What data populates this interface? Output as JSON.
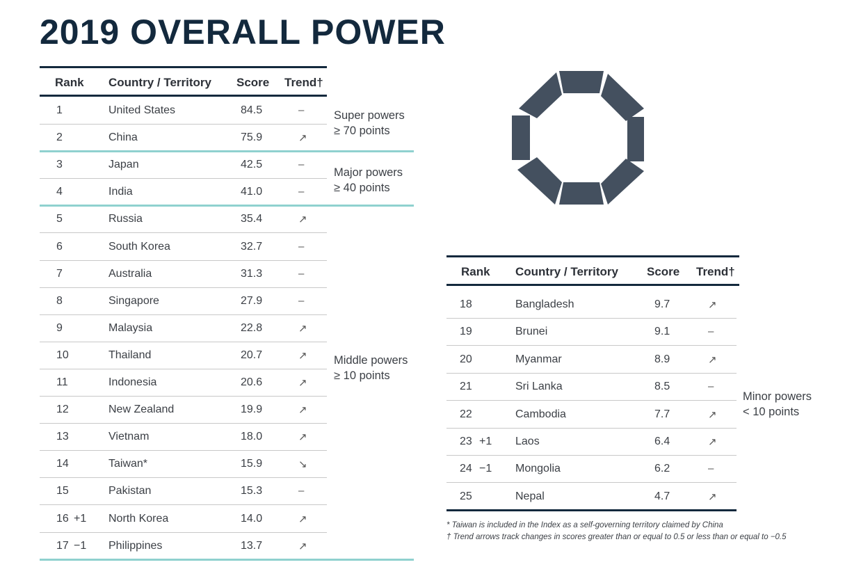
{
  "title": "2019 OVERALL POWER",
  "colors": {
    "navy": "#13293d",
    "teal": "#8fd1cf",
    "logo": "#44505f"
  },
  "headers": {
    "rank": "Rank",
    "country": "Country / Territory",
    "score": "Score",
    "trend": "Trend†"
  },
  "left_rows": [
    {
      "rank": "1",
      "change": "",
      "country": "United States",
      "score": "84.5",
      "trend": "–"
    },
    {
      "rank": "2",
      "change": "",
      "country": "China",
      "score": "75.9",
      "trend": "↗"
    },
    {
      "rank": "3",
      "change": "",
      "country": "Japan",
      "score": "42.5",
      "trend": "–"
    },
    {
      "rank": "4",
      "change": "",
      "country": "India",
      "score": "41.0",
      "trend": "–"
    },
    {
      "rank": "5",
      "change": "",
      "country": "Russia",
      "score": "35.4",
      "trend": "↗"
    },
    {
      "rank": "6",
      "change": "",
      "country": "South Korea",
      "score": "32.7",
      "trend": "–"
    },
    {
      "rank": "7",
      "change": "",
      "country": "Australia",
      "score": "31.3",
      "trend": "–"
    },
    {
      "rank": "8",
      "change": "",
      "country": "Singapore",
      "score": "27.9",
      "trend": "–"
    },
    {
      "rank": "9",
      "change": "",
      "country": "Malaysia",
      "score": "22.8",
      "trend": "↗"
    },
    {
      "rank": "10",
      "change": "",
      "country": "Thailand",
      "score": "20.7",
      "trend": "↗"
    },
    {
      "rank": "11",
      "change": "",
      "country": "Indonesia",
      "score": "20.6",
      "trend": "↗"
    },
    {
      "rank": "12",
      "change": "",
      "country": "New Zealand",
      "score": "19.9",
      "trend": "↗"
    },
    {
      "rank": "13",
      "change": "",
      "country": "Vietnam",
      "score": "18.0",
      "trend": "↗"
    },
    {
      "rank": "14",
      "change": "",
      "country": "Taiwan*",
      "score": "15.9",
      "trend": "↘"
    },
    {
      "rank": "15",
      "change": "",
      "country": "Pakistan",
      "score": "15.3",
      "trend": "–"
    },
    {
      "rank": "16",
      "change": "+1",
      "country": "North Korea",
      "score": "14.0",
      "trend": "↗"
    },
    {
      "rank": "17",
      "change": "−1",
      "country": "Philippines",
      "score": "13.7",
      "trend": "↗"
    }
  ],
  "right_rows": [
    {
      "rank": "18",
      "change": "",
      "country": "Bangladesh",
      "score": "9.7",
      "trend": "↗"
    },
    {
      "rank": "19",
      "change": "",
      "country": "Brunei",
      "score": "9.1",
      "trend": "–"
    },
    {
      "rank": "20",
      "change": "",
      "country": "Myanmar",
      "score": "8.9",
      "trend": "↗"
    },
    {
      "rank": "21",
      "change": "",
      "country": "Sri Lanka",
      "score": "8.5",
      "trend": "–"
    },
    {
      "rank": "22",
      "change": "",
      "country": "Cambodia",
      "score": "7.7",
      "trend": "↗"
    },
    {
      "rank": "23",
      "change": "+1",
      "country": "Laos",
      "score": "6.4",
      "trend": "↗"
    },
    {
      "rank": "24",
      "change": "−1",
      "country": "Mongolia",
      "score": "6.2",
      "trend": "–"
    },
    {
      "rank": "25",
      "change": "",
      "country": "Nepal",
      "score": "4.7",
      "trend": "↗"
    }
  ],
  "groups": {
    "super": {
      "name": "Super powers",
      "threshold": "≥ 70 points"
    },
    "major": {
      "name": "Major powers",
      "threshold": "≥ 40 points"
    },
    "middle": {
      "name": "Middle powers",
      "threshold": "≥ 10 points"
    },
    "minor": {
      "name": "Minor powers",
      "threshold": "< 10 points"
    }
  },
  "footnotes": {
    "taiwan": "* Taiwan is included in the Index as a self-governing territory claimed by China",
    "trend": "† Trend arrows track changes in scores greater than or equal to 0.5 or less than or equal to −0.5"
  }
}
